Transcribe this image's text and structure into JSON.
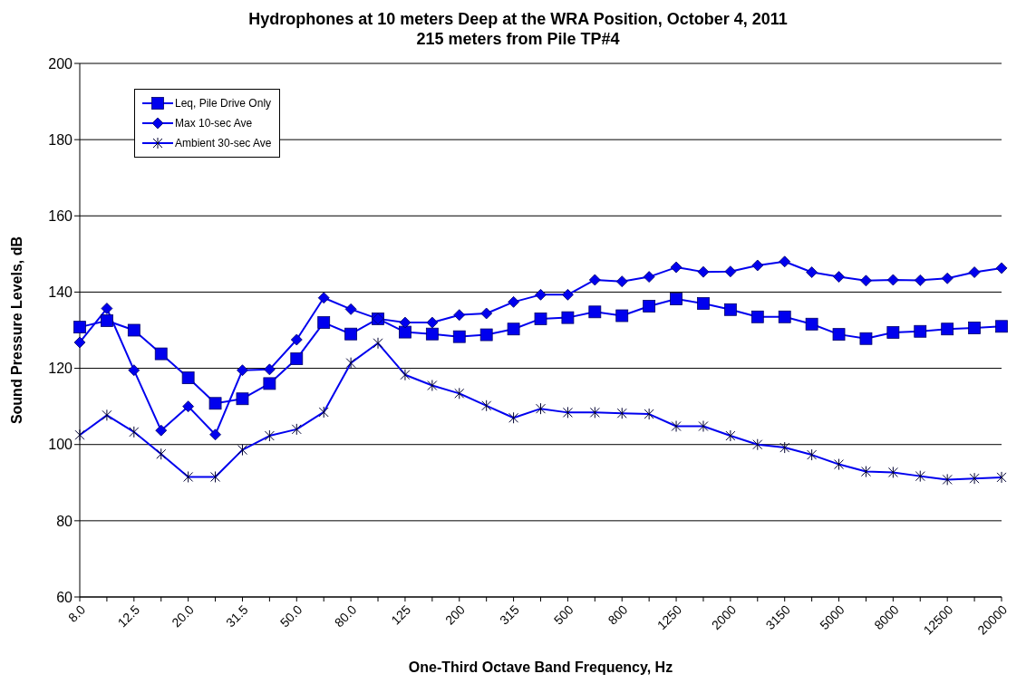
{
  "chart_data": {
    "type": "line",
    "title": "Hydrophones at 10 meters Deep at the WRA Position, October 4, 2011",
    "subtitle": "215 meters from Pile TP#4",
    "xlabel": "One-Third Octave Band Frequency, Hz",
    "ylabel": "Sound Pressure Levels, dB",
    "categories": [
      "8.0",
      null,
      "12.5",
      null,
      "20.0",
      null,
      "31.5",
      null,
      "50.0",
      null,
      "80.0",
      null,
      "125",
      null,
      "200",
      null,
      "315",
      null,
      "500",
      null,
      "800",
      null,
      "1250",
      null,
      "2000",
      null,
      "3150",
      null,
      "5000",
      null,
      "8000",
      null,
      "12500",
      null,
      "20000"
    ],
    "series": [
      {
        "name": "Leq, Pile Drive Only",
        "color": "#0000ee",
        "marker": "square",
        "values": [
          130.8,
          132.5,
          130,
          123.8,
          117.5,
          110.8,
          112,
          116,
          122.5,
          132,
          129,
          133,
          129.5,
          129,
          128.3,
          128.8,
          130.3,
          133,
          133.3,
          134.8,
          133.8,
          136.3,
          138.2,
          137,
          135.4,
          133.5,
          133.5,
          131.6,
          128.9,
          127.8,
          129.4,
          129.7,
          130.3,
          130.6,
          131
        ]
      },
      {
        "name": "Max 10-sec Ave",
        "color": "#0000ee",
        "marker": "diamond",
        "values": [
          126.8,
          135.7,
          119.5,
          103.7,
          110,
          102.6,
          119.5,
          119.7,
          127.5,
          138.5,
          135.5,
          133,
          132,
          132,
          134,
          134.4,
          137.4,
          139.3,
          139.3,
          143.2,
          142.8,
          144,
          146.5,
          145.3,
          145.4,
          147,
          148,
          145.2,
          144,
          143,
          143.2,
          143.1,
          143.6,
          145.2,
          146.3
        ]
      },
      {
        "name": "Ambient 30-sec Ave",
        "color": "#0000ee",
        "marker": "cross",
        "values": [
          102.5,
          107.7,
          103.3,
          97.5,
          91.5,
          91.5,
          98.6,
          102.3,
          104,
          108.5,
          121.4,
          126.6,
          118.3,
          115.5,
          113.4,
          110.2,
          107,
          109.4,
          108.4,
          108.4,
          108.2,
          108,
          104.8,
          104.8,
          102.3,
          100,
          99.2,
          97.3,
          94.8,
          92.9,
          92.7,
          91.7,
          90.8,
          91.1,
          91.4
        ]
      }
    ],
    "ylim": [
      60,
      200
    ],
    "yticks": [
      60,
      80,
      100,
      120,
      140,
      160,
      180,
      200
    ],
    "grid": "y",
    "legend": "top left",
    "line_style": "solid"
  }
}
